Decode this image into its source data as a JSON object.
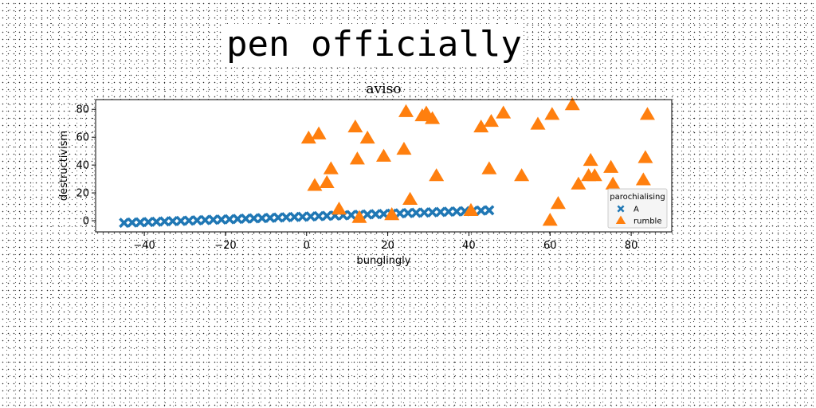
{
  "banner": "pen officially",
  "chart_data": {
    "type": "scatter",
    "title": "aviso",
    "xlabel": "bunglingly",
    "ylabel": "destructivism",
    "xlim": [
      -52,
      90
    ],
    "ylim": [
      -8,
      87
    ],
    "xticks": [
      -40,
      -20,
      0,
      20,
      40,
      60,
      80
    ],
    "yticks": [
      0,
      20,
      40,
      60,
      80
    ],
    "grid": false,
    "legend": {
      "title": "parochialising",
      "placement": "lower-right"
    },
    "series": [
      {
        "name": "A",
        "marker": "x",
        "color": "#1f77b4",
        "x": [
          -45,
          -43,
          -41,
          -39,
          -37,
          -35,
          -33,
          -31,
          -29,
          -27,
          -25,
          -23,
          -21,
          -19,
          -17,
          -15,
          -13,
          -11,
          -9,
          -7,
          -5,
          -3,
          -1,
          1,
          3,
          5,
          7,
          9,
          11,
          13,
          15,
          17,
          19,
          21,
          23,
          25,
          27,
          29,
          31,
          33,
          35,
          37,
          39,
          41,
          43,
          45
        ],
        "y": [
          -1.5,
          -1.3,
          -1.1,
          -0.9,
          -0.7,
          -0.5,
          -0.3,
          -0.1,
          0.1,
          0.3,
          0.5,
          0.7,
          0.9,
          1.1,
          1.3,
          1.5,
          1.7,
          1.9,
          2.1,
          2.3,
          2.5,
          2.7,
          2.9,
          3.1,
          3.3,
          3.5,
          3.7,
          3.9,
          4.1,
          4.3,
          4.5,
          4.7,
          4.9,
          5.1,
          5.3,
          5.5,
          5.7,
          5.9,
          6.1,
          6.3,
          6.5,
          6.7,
          6.9,
          7.1,
          7.3,
          7.5
        ]
      },
      {
        "name": "rumble",
        "marker": "triangle",
        "color": "#ff7f0e",
        "x": [
          0.5,
          2,
          3,
          5,
          6,
          8,
          12,
          12.5,
          13,
          15,
          19,
          21,
          24,
          24.5,
          25.5,
          28.5,
          29.5,
          31,
          32,
          40.5,
          43,
          45,
          45.5,
          48.5,
          53,
          57,
          60,
          60.5,
          62,
          65.5,
          67,
          69.5,
          70,
          71,
          75,
          75.5,
          83,
          83.5,
          84
        ],
        "y": [
          59,
          25,
          62,
          27,
          37,
          8,
          67,
          44,
          2,
          59,
          46,
          4,
          51,
          78,
          15,
          75,
          77,
          73,
          32,
          7,
          67,
          37,
          71,
          77,
          32,
          69,
          0,
          76,
          12,
          83,
          26,
          32,
          43,
          32,
          38,
          26,
          29,
          45,
          76
        ]
      }
    ]
  }
}
